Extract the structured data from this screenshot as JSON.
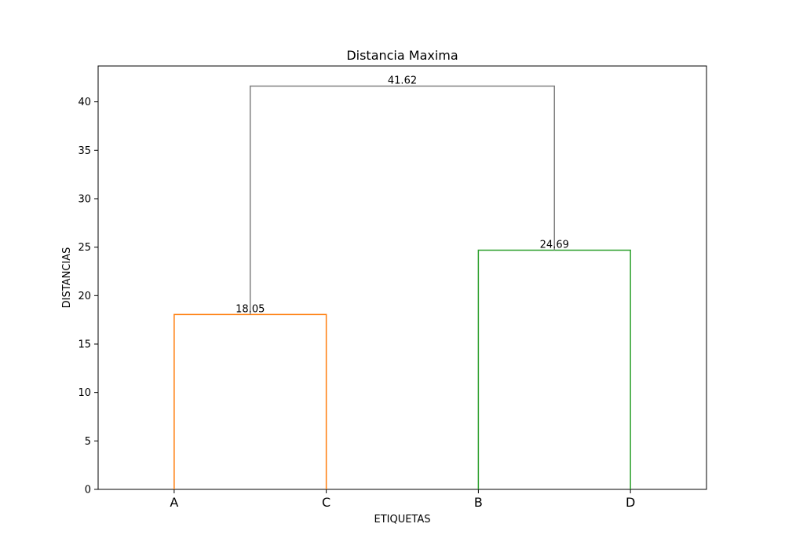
{
  "chart_data": {
    "type": "dendrogram",
    "title": "Distancia Maxima",
    "xlabel": "ETIQUETAS",
    "ylabel": "DISTANCIAS",
    "ylim": [
      0,
      43.7
    ],
    "yticks": [
      0,
      5,
      10,
      15,
      20,
      25,
      30,
      35,
      40
    ],
    "leaves": [
      "A",
      "C",
      "B",
      "D"
    ],
    "merges": [
      {
        "left": "A",
        "right": "C",
        "height": 18.05,
        "label": "18.05",
        "color": "#ff7f0e"
      },
      {
        "left": "B",
        "right": "D",
        "height": 24.69,
        "label": "24.69",
        "color": "#2ca02c"
      },
      {
        "left": "A-C",
        "right": "B-D",
        "height": 41.62,
        "label": "41.62",
        "color": "#808080"
      }
    ],
    "grid": false,
    "legend": false
  }
}
